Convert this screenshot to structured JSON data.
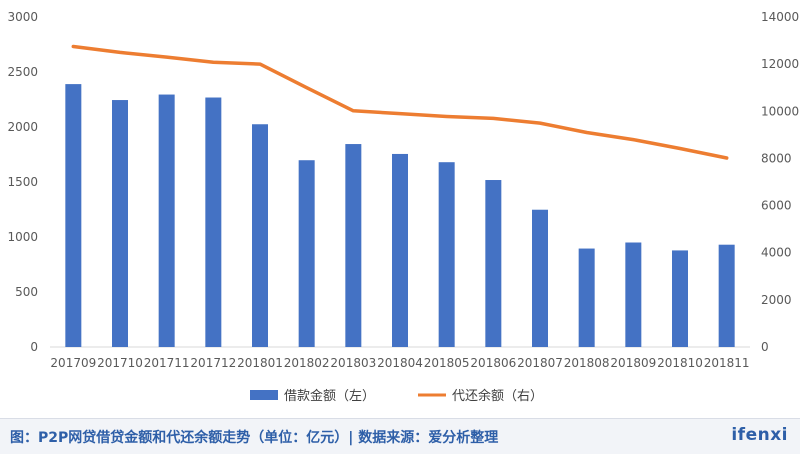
{
  "chart_data": {
    "type": "bar+line",
    "categories": [
      "201709",
      "201710",
      "201711",
      "201712",
      "201801",
      "201802",
      "201803",
      "201804",
      "201805",
      "201806",
      "201807",
      "201808",
      "201809",
      "201810",
      "201811"
    ],
    "series": [
      {
        "name": "借款金额（左）",
        "type": "bar",
        "axis": "left",
        "color": "#4472c4",
        "values": [
          2390,
          2245,
          2295,
          2268,
          2025,
          1698,
          1845,
          1755,
          1680,
          1518,
          1248,
          895,
          950,
          878,
          930
        ]
      },
      {
        "name": "代还余额（右）",
        "type": "line",
        "axis": "right",
        "color": "#ed7d31",
        "values": [
          12750,
          12500,
          12300,
          12080,
          12000,
          11000,
          10020,
          9900,
          9780,
          9700,
          9500,
          9100,
          8800,
          8420,
          8020
        ]
      }
    ],
    "y_left": {
      "min": 0,
      "max": 3000,
      "ticks": [
        0,
        500,
        1000,
        1500,
        2000,
        2500,
        3000
      ]
    },
    "y_right": {
      "min": 0,
      "max": 14000,
      "ticks": [
        0,
        2000,
        4000,
        6000,
        8000,
        10000,
        12000,
        14000
      ]
    },
    "grid": false,
    "legend_position": "bottom"
  },
  "footer": {
    "caption": "图：P2P网贷借贷金额和代还余额走势（单位：亿元）| 数据来源：爱分析整理",
    "logo": "ifenxi"
  }
}
